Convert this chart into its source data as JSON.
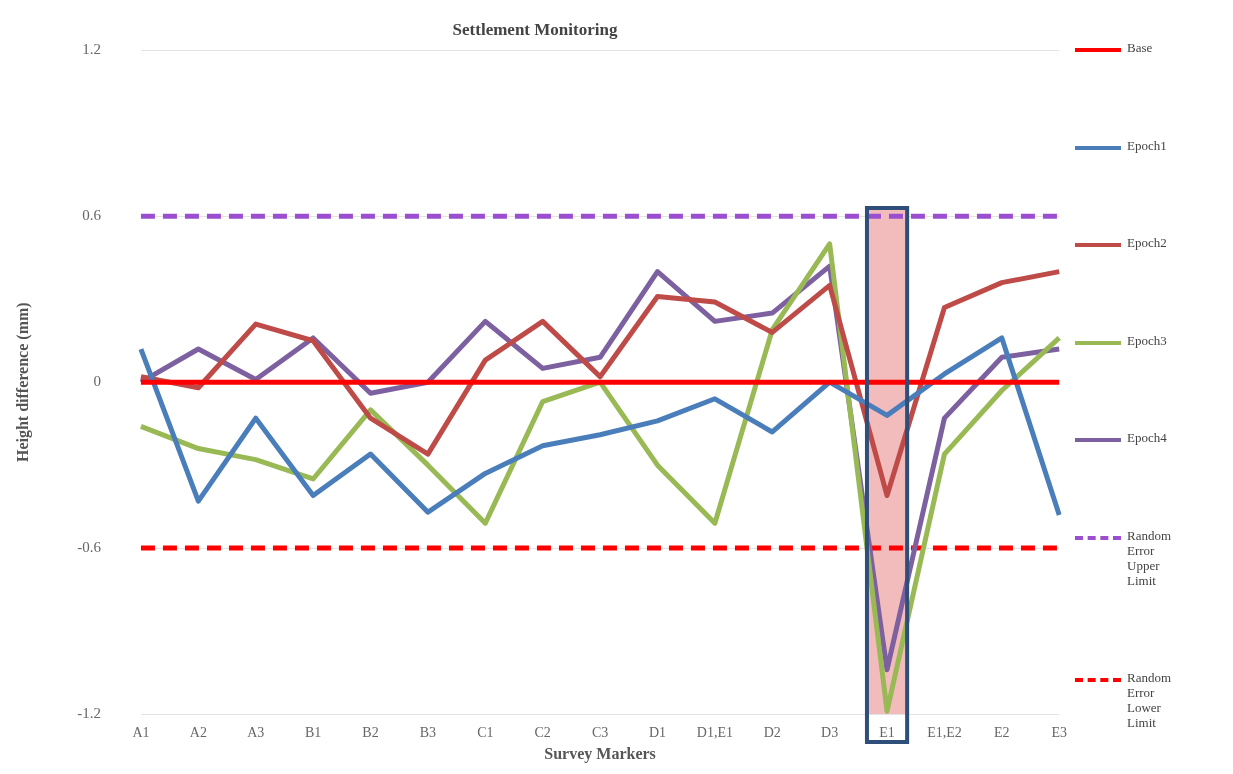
{
  "chart_data": {
    "type": "line",
    "title": "Settlement Monitoring",
    "xlabel": "Survey Markers",
    "ylabel": "Height difference (mm)",
    "categories": [
      "A1",
      "A2",
      "A3",
      "B1",
      "B2",
      "B3",
      "C1",
      "C2",
      "C3",
      "D1",
      "D1,E1",
      "D2",
      "D3",
      "E1",
      "E1,E2",
      "E2",
      "E3"
    ],
    "series": [
      {
        "name": "Base",
        "color": "#ff0000",
        "values": [
          0,
          0,
          0,
          0,
          0,
          0,
          0,
          0,
          0,
          0,
          0,
          0,
          0,
          0,
          0,
          0,
          0
        ]
      },
      {
        "name": "Epoch1",
        "color": "#4a7ebb",
        "values": [
          0.12,
          -0.43,
          -0.13,
          -0.41,
          -0.26,
          -0.47,
          -0.33,
          -0.23,
          -0.19,
          -0.14,
          -0.06,
          -0.18,
          0,
          -0.12,
          0.03,
          0.16,
          -0.48
        ]
      },
      {
        "name": "Epoch2",
        "color": "#be4b48",
        "values": [
          0.02,
          -0.02,
          0.21,
          0.15,
          -0.13,
          -0.26,
          0.08,
          0.22,
          0.02,
          0.31,
          0.29,
          0.18,
          0.35,
          -0.41,
          0.27,
          0.36,
          0.4
        ]
      },
      {
        "name": "Epoch3",
        "color": "#98b954",
        "values": [
          -0.16,
          -0.24,
          -0.28,
          -0.35,
          -0.1,
          -0.3,
          -0.51,
          -0.07,
          0,
          -0.3,
          -0.51,
          0.19,
          0.5,
          -1.19,
          -0.26,
          -0.03,
          0.16
        ]
      },
      {
        "name": "Epoch4",
        "color": "#7d60a0",
        "values": [
          0,
          0.12,
          0.01,
          0.16,
          -0.04,
          0,
          0.22,
          0.05,
          0.09,
          0.4,
          0.22,
          0.25,
          0.42,
          -1.04,
          -0.13,
          0.09,
          0.12
        ]
      },
      {
        "name": "Random Error Upper Limit",
        "color": "#9b4fd0",
        "line_style": "dashed",
        "values": [
          0.6,
          0.6,
          0.6,
          0.6,
          0.6,
          0.6,
          0.6,
          0.6,
          0.6,
          0.6,
          0.6,
          0.6,
          0.6,
          0.6,
          0.6,
          0.6,
          0.6
        ]
      },
      {
        "name": "Random Error Lower Limit",
        "color": "#ff0000",
        "line_style": "dashed",
        "values": [
          -0.6,
          -0.6,
          -0.6,
          -0.6,
          -0.6,
          -0.6,
          -0.6,
          -0.6,
          -0.6,
          -0.6,
          -0.6,
          -0.6,
          -0.6,
          -0.6,
          -0.6,
          -0.6,
          -0.6
        ]
      }
    ],
    "bands": [
      {
        "axis": "x",
        "from": "E1",
        "to": "E1",
        "color": "#f2bcbc"
      }
    ],
    "ylim": [
      -1.2,
      1.2
    ],
    "yticks": [
      -1.2,
      -0.6,
      0,
      0.6,
      1.2
    ],
    "grid": "y",
    "legend": "right",
    "marker": "none"
  }
}
